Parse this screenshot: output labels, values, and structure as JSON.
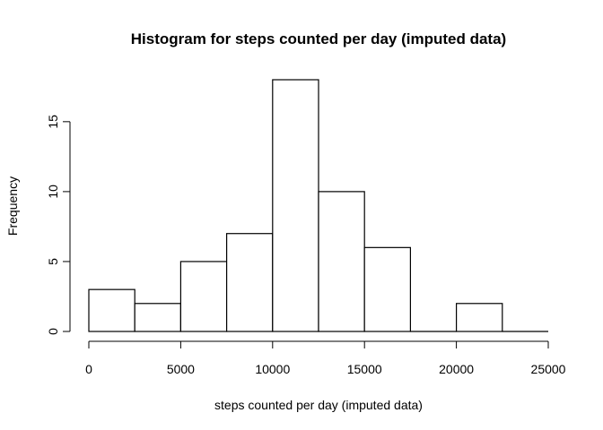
{
  "chart_data": {
    "type": "bar",
    "title": "Histogram for steps counted per day (imputed data)",
    "xlabel": "steps counted per day (imputed data)",
    "ylabel": "Frequency",
    "bins": [
      {
        "start": 0,
        "end": 2500,
        "count": 3
      },
      {
        "start": 2500,
        "end": 5000,
        "count": 2
      },
      {
        "start": 5000,
        "end": 7500,
        "count": 5
      },
      {
        "start": 7500,
        "end": 10000,
        "count": 7
      },
      {
        "start": 10000,
        "end": 12500,
        "count": 18
      },
      {
        "start": 12500,
        "end": 15000,
        "count": 10
      },
      {
        "start": 15000,
        "end": 17500,
        "count": 6
      },
      {
        "start": 17500,
        "end": 20000,
        "count": 0
      },
      {
        "start": 20000,
        "end": 22500,
        "count": 2
      },
      {
        "start": 22500,
        "end": 25000,
        "count": 0
      }
    ],
    "xlim": [
      0,
      25000
    ],
    "ylim": [
      0,
      18
    ],
    "xticks": [
      "0",
      "5000",
      "10000",
      "15000",
      "20000",
      "25000"
    ],
    "yticks": [
      "0",
      "5",
      "10",
      "15"
    ],
    "grid": false,
    "legend": "none",
    "bar_fill": "#ffffff",
    "bar_stroke": "#000000"
  }
}
